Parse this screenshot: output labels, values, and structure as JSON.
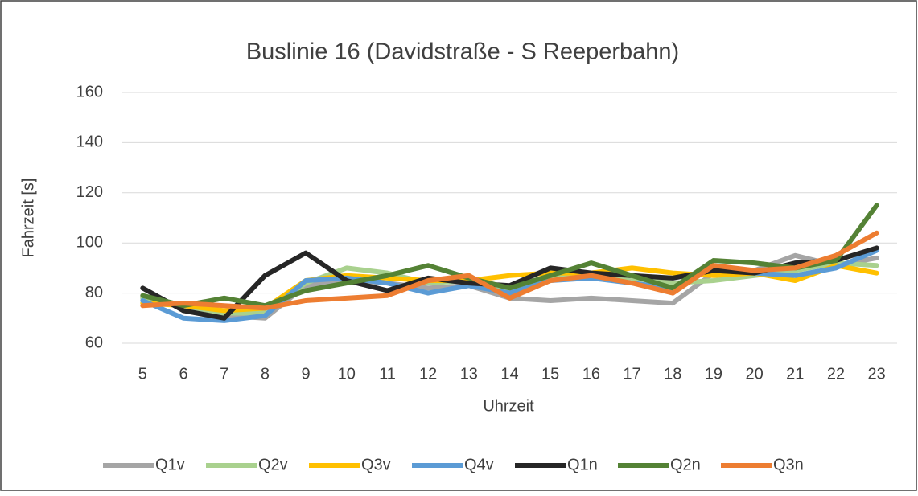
{
  "chart_data": {
    "type": "line",
    "title": "Buslinie 16 (Davidstraße - S Reeperbahn)",
    "x_label": "Uhrzeit",
    "y_label": "Fahrzeit [s]",
    "categories": [
      "5",
      "6",
      "7",
      "8",
      "9",
      "10",
      "11",
      "12",
      "13",
      "14",
      "15",
      "16",
      "17",
      "18",
      "19",
      "20",
      "21",
      "22",
      "23"
    ],
    "series": [
      {
        "name": "Q1v",
        "color": "#a5a5a5",
        "values": [
          78,
          75,
          71,
          70,
          83,
          85,
          84,
          82,
          83,
          78,
          77,
          78,
          77,
          76,
          88,
          89,
          95,
          91,
          94
        ]
      },
      {
        "name": "Q2v",
        "color": "#a9d18e",
        "values": [
          78,
          75,
          72,
          72,
          84,
          90,
          88,
          84,
          85,
          80,
          86,
          88,
          86,
          84,
          85,
          87,
          89,
          92,
          91
        ]
      },
      {
        "name": "Q3v",
        "color": "#ffc000",
        "values": [
          76,
          75,
          73,
          74,
          85,
          87,
          86,
          85,
          85,
          87,
          88,
          88,
          90,
          88,
          87,
          88,
          85,
          91,
          88
        ]
      },
      {
        "name": "Q4v",
        "color": "#5b9bd5",
        "values": [
          77,
          70,
          69,
          71,
          85,
          86,
          84,
          80,
          83,
          80,
          85,
          86,
          84,
          82,
          91,
          88,
          87,
          90,
          97
        ]
      },
      {
        "name": "Q1n",
        "color": "#262626",
        "values": [
          82,
          73,
          70,
          87,
          96,
          85,
          81,
          86,
          84,
          83,
          90,
          88,
          87,
          86,
          89,
          88,
          92,
          93,
          98
        ]
      },
      {
        "name": "Q2n",
        "color": "#548235",
        "values": [
          79,
          75,
          78,
          75,
          81,
          84,
          87,
          91,
          86,
          82,
          87,
          92,
          87,
          82,
          93,
          92,
          90,
          93,
          115
        ]
      },
      {
        "name": "Q3n",
        "color": "#ed7d31",
        "values": [
          75,
          76,
          75,
          74,
          77,
          78,
          79,
          85,
          87,
          78,
          85,
          87,
          84,
          80,
          91,
          89,
          90,
          95,
          104
        ]
      }
    ],
    "ylim": [
      60,
      160
    ],
    "yticks": [
      60,
      80,
      100,
      120,
      140,
      160
    ],
    "grid": true,
    "legend": "bottom"
  }
}
